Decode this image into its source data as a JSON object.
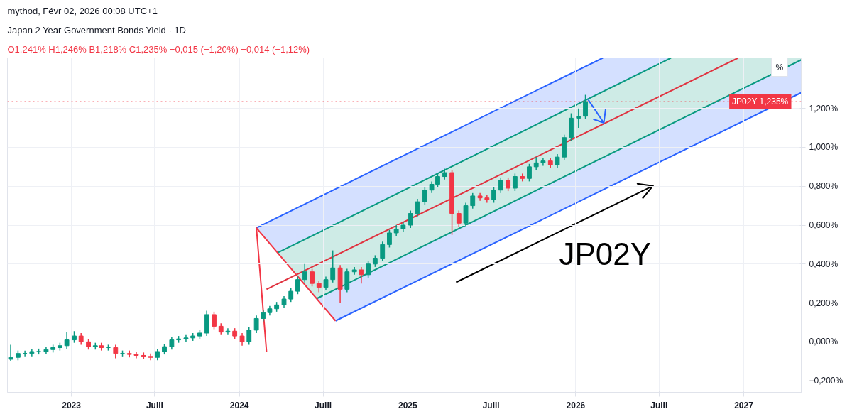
{
  "chart_data": {
    "type": "candlestick",
    "title": "Japan 2 Year Government Bonds Yield · 1D",
    "subtitle": "O1,241% H1,246% B1,218% C1,235% −0,015 (−1,20%) −0,014 (−1,12%)",
    "annotations": [
      "mythod, Févr 02, 2026 00:08 UTC+1",
      "JP02Y",
      "%"
    ],
    "x": [
      "2022-08-22",
      "2022-09-07",
      "2022-09-22",
      "2022-10-07",
      "2022-10-22",
      "2022-11-07",
      "2022-11-22",
      "2022-12-07",
      "2022-12-22",
      "2023-01-07",
      "2023-01-22",
      "2023-02-07",
      "2023-02-22",
      "2023-03-07",
      "2023-03-22",
      "2023-04-07",
      "2023-04-22",
      "2023-05-07",
      "2023-05-22",
      "2023-06-07",
      "2023-06-22",
      "2023-07-07",
      "2023-07-22",
      "2023-08-07",
      "2023-08-22",
      "2023-09-07",
      "2023-09-22",
      "2023-10-07",
      "2023-10-22",
      "2023-11-07",
      "2023-11-22",
      "2023-12-07",
      "2023-12-22",
      "2024-01-07",
      "2024-01-22",
      "2024-02-07",
      "2024-02-22",
      "2024-03-07",
      "2024-03-22",
      "2024-04-07",
      "2024-04-22",
      "2024-05-07",
      "2024-05-22",
      "2024-06-07",
      "2024-06-22",
      "2024-07-07",
      "2024-07-22",
      "2024-08-07",
      "2024-08-22",
      "2024-09-07",
      "2024-09-22",
      "2024-10-07",
      "2024-10-22",
      "2024-11-07",
      "2024-11-22",
      "2024-12-07",
      "2024-12-22",
      "2025-01-07",
      "2025-01-22",
      "2025-02-07",
      "2025-02-22",
      "2025-03-07",
      "2025-03-22",
      "2025-04-07",
      "2025-04-22",
      "2025-05-07",
      "2025-05-22",
      "2025-06-07",
      "2025-06-22",
      "2025-07-07",
      "2025-07-22",
      "2025-08-07",
      "2025-08-22",
      "2025-09-07",
      "2025-09-22",
      "2025-10-07",
      "2025-10-22",
      "2025-11-07",
      "2025-11-22",
      "2025-12-07",
      "2025-12-22",
      "2026-01-07",
      "2026-01-22"
    ],
    "ohlc": [
      [
        -0.09,
        -0.015,
        -0.1,
        -0.08
      ],
      [
        -0.08,
        -0.045,
        -0.095,
        -0.06
      ],
      [
        -0.06,
        -0.045,
        -0.075,
        -0.06
      ],
      [
        -0.06,
        -0.035,
        -0.075,
        -0.05
      ],
      [
        -0.05,
        -0.035,
        -0.065,
        -0.05
      ],
      [
        -0.05,
        -0.025,
        -0.065,
        -0.04
      ],
      [
        -0.04,
        -0.015,
        -0.055,
        -0.03
      ],
      [
        -0.03,
        -0.005,
        -0.045,
        -0.02
      ],
      [
        -0.02,
        0.05,
        -0.035,
        0.01
      ],
      [
        0.01,
        0.055,
        -0.005,
        0.03
      ],
      [
        0.03,
        0.045,
        -0.015,
        0.0
      ],
      [
        0.0,
        0.015,
        -0.04,
        -0.025
      ],
      [
        -0.025,
        -0.005,
        -0.04,
        -0.02
      ],
      [
        -0.02,
        -0.005,
        -0.045,
        -0.03
      ],
      [
        -0.03,
        -0.015,
        -0.045,
        -0.03
      ],
      [
        -0.03,
        -0.015,
        -0.085,
        -0.06
      ],
      [
        -0.06,
        -0.045,
        -0.075,
        -0.06
      ],
      [
        -0.06,
        -0.045,
        -0.08,
        -0.065
      ],
      [
        -0.065,
        -0.05,
        -0.085,
        -0.07
      ],
      [
        -0.07,
        -0.055,
        -0.09,
        -0.075
      ],
      [
        -0.075,
        -0.06,
        -0.095,
        -0.08
      ],
      [
        -0.08,
        -0.035,
        -0.095,
        -0.05
      ],
      [
        -0.05,
        -0.01,
        -0.065,
        -0.025
      ],
      [
        -0.025,
        0.025,
        -0.04,
        0.01
      ],
      [
        0.01,
        0.03,
        -0.005,
        0.015
      ],
      [
        0.015,
        0.035,
        0.0,
        0.02
      ],
      [
        0.02,
        0.045,
        0.005,
        0.03
      ],
      [
        0.03,
        0.06,
        0.015,
        0.045
      ],
      [
        0.045,
        0.16,
        0.03,
        0.14
      ],
      [
        0.14,
        0.155,
        0.065,
        0.08
      ],
      [
        0.08,
        0.095,
        0.035,
        0.05
      ],
      [
        0.05,
        0.07,
        0.035,
        0.055
      ],
      [
        0.055,
        0.07,
        0.015,
        0.03
      ],
      [
        0.03,
        0.045,
        -0.02,
        0.0
      ],
      [
        0.0,
        0.075,
        -0.015,
        0.06
      ],
      [
        0.06,
        0.135,
        0.045,
        0.12
      ],
      [
        0.12,
        0.165,
        0.105,
        0.15
      ],
      [
        0.15,
        0.185,
        0.135,
        0.17
      ],
      [
        0.17,
        0.205,
        0.155,
        0.19
      ],
      [
        0.19,
        0.235,
        0.175,
        0.22
      ],
      [
        0.22,
        0.275,
        0.205,
        0.26
      ],
      [
        0.26,
        0.335,
        0.245,
        0.32
      ],
      [
        0.32,
        0.4,
        0.305,
        0.36
      ],
      [
        0.36,
        0.375,
        0.285,
        0.3
      ],
      [
        0.3,
        0.315,
        0.255,
        0.28
      ],
      [
        0.28,
        0.335,
        0.265,
        0.32
      ],
      [
        0.32,
        0.47,
        0.305,
        0.38
      ],
      [
        0.38,
        0.395,
        0.2,
        0.27
      ],
      [
        0.27,
        0.375,
        0.255,
        0.36
      ],
      [
        0.36,
        0.385,
        0.345,
        0.37
      ],
      [
        0.37,
        0.385,
        0.3,
        0.345
      ],
      [
        0.345,
        0.415,
        0.33,
        0.4
      ],
      [
        0.4,
        0.445,
        0.385,
        0.43
      ],
      [
        0.43,
        0.515,
        0.415,
        0.5
      ],
      [
        0.5,
        0.575,
        0.485,
        0.56
      ],
      [
        0.56,
        0.6,
        0.545,
        0.58
      ],
      [
        0.58,
        0.615,
        0.565,
        0.6
      ],
      [
        0.6,
        0.675,
        0.585,
        0.66
      ],
      [
        0.66,
        0.735,
        0.645,
        0.72
      ],
      [
        0.72,
        0.795,
        0.705,
        0.78
      ],
      [
        0.78,
        0.825,
        0.765,
        0.81
      ],
      [
        0.81,
        0.865,
        0.795,
        0.85
      ],
      [
        0.85,
        0.89,
        0.835,
        0.87
      ],
      [
        0.87,
        0.885,
        0.55,
        0.66
      ],
      [
        0.66,
        0.675,
        0.59,
        0.61
      ],
      [
        0.61,
        0.715,
        0.595,
        0.7
      ],
      [
        0.7,
        0.765,
        0.685,
        0.75
      ],
      [
        0.75,
        0.765,
        0.725,
        0.74
      ],
      [
        0.74,
        0.755,
        0.715,
        0.73
      ],
      [
        0.73,
        0.795,
        0.715,
        0.78
      ],
      [
        0.78,
        0.845,
        0.765,
        0.83
      ],
      [
        0.83,
        0.845,
        0.775,
        0.79
      ],
      [
        0.79,
        0.865,
        0.775,
        0.85
      ],
      [
        0.85,
        0.865,
        0.825,
        0.84
      ],
      [
        0.84,
        0.915,
        0.825,
        0.9
      ],
      [
        0.9,
        0.95,
        0.885,
        0.92
      ],
      [
        0.92,
        0.945,
        0.905,
        0.93
      ],
      [
        0.93,
        0.945,
        0.895,
        0.91
      ],
      [
        0.91,
        0.965,
        0.895,
        0.95
      ],
      [
        0.95,
        1.065,
        0.935,
        1.05
      ],
      [
        1.05,
        1.175,
        1.035,
        1.15
      ],
      [
        1.15,
        1.2,
        1.1,
        1.16
      ],
      [
        1.16,
        1.27,
        1.145,
        1.235
      ]
    ],
    "series": [
      {
        "type": "line",
        "color": "#2962ff",
        "x": [
          "2024-02-07",
          "2024-07-28",
          "2026-03-01",
          "2027-05-06"
        ],
        "values": [
          0.586,
          0.786,
          1.46,
          null
        ],
        "lower": [
          0.586,
          0.108,
          0.782,
          1.281
        ],
        "upper": [
          0.586,
          0.786,
          1.46,
          1.46
        ]
      },
      {
        "type": "line",
        "color": "#089981",
        "x": [
          "2024-03-24",
          "2024-06-17",
          "2026-07-27",
          "2027-05-06"
        ],
        "values": [
          0.458,
          0.557,
          1.46,
          null
        ],
        "lower": [
          0.458,
          0.222,
          1.115,
          1.45
        ],
        "upper": [
          0.458,
          0.557,
          1.46,
          1.46
        ]
      },
      {
        "type": "line",
        "color": "#089981",
        "x": [
          "2024-06-17",
          "2027-05-06"
        ],
        "values": [
          0.222,
          1.45
        ]
      },
      {
        "type": "line",
        "color": "#2962ff",
        "x": [
          "2024-07-28",
          "2027-05-06"
        ],
        "values": [
          0.108,
          1.281
        ]
      },
      {
        "type": "line",
        "color": "#e0323f",
        "x": [
          "2024-02-29",
          "2026-12-20"
        ],
        "values": [
          0.27,
          1.46
        ]
      },
      {
        "type": "line",
        "color": "#f23645",
        "x": [
          "2024-02-29",
          "2024-02-07",
          "2024-07-28"
        ],
        "values": [
          -0.05,
          0.586,
          0.108
        ]
      },
      {
        "type": "line",
        "color": "#000000",
        "x": [
          "2025-04-16",
          "2026-06-18",
          "2026-05-15",
          "2026-06-18",
          "2026-05-26"
        ],
        "values": [
          0.306,
          0.802,
          0.813,
          0.802,
          0.737
        ]
      },
      {
        "type": "line",
        "color": "#2962ff",
        "x": [
          "2026-01-28",
          "2026-03-03",
          "2026-02-09",
          "2026-03-03",
          "2026-03-07"
        ],
        "values": [
          1.245,
          1.126,
          1.144,
          1.126,
          1.198
        ]
      }
    ],
    "ref_lines": [
      {
        "axis": "y",
        "value": 1.235,
        "label": "JP02Y 1,235%",
        "color": "#f23645",
        "line_style": "dotted"
      }
    ],
    "xlim": [
      "2022-08-15",
      "2027-05-06"
    ],
    "xticks": [
      {
        "value": "2023-01-01",
        "label": "2023"
      },
      {
        "value": "2023-07-01",
        "label": "Juill"
      },
      {
        "value": "2024-01-01",
        "label": "2024"
      },
      {
        "value": "2024-07-01",
        "label": "Juill"
      },
      {
        "value": "2025-01-01",
        "label": "2025"
      },
      {
        "value": "2025-07-01",
        "label": "Juill"
      },
      {
        "value": "2026-01-01",
        "label": "2026"
      },
      {
        "value": "2026-07-01",
        "label": "Juill"
      },
      {
        "value": "2027-01-01",
        "label": "2027"
      }
    ],
    "ylim": [
      -0.26,
      1.46
    ],
    "yticks": [
      {
        "value": -0.2,
        "label": "−0,200%"
      },
      {
        "value": 0,
        "label": "0,000%"
      },
      {
        "value": 0.2,
        "label": "0,200%"
      },
      {
        "value": 0.4,
        "label": "0,400%"
      },
      {
        "value": 0.6,
        "label": "0,600%"
      },
      {
        "value": 0.8,
        "label": "0,800%"
      },
      {
        "value": 1.0,
        "label": "1,000%"
      },
      {
        "value": 1.2,
        "label": "1,200%"
      }
    ],
    "grid": true
  }
}
